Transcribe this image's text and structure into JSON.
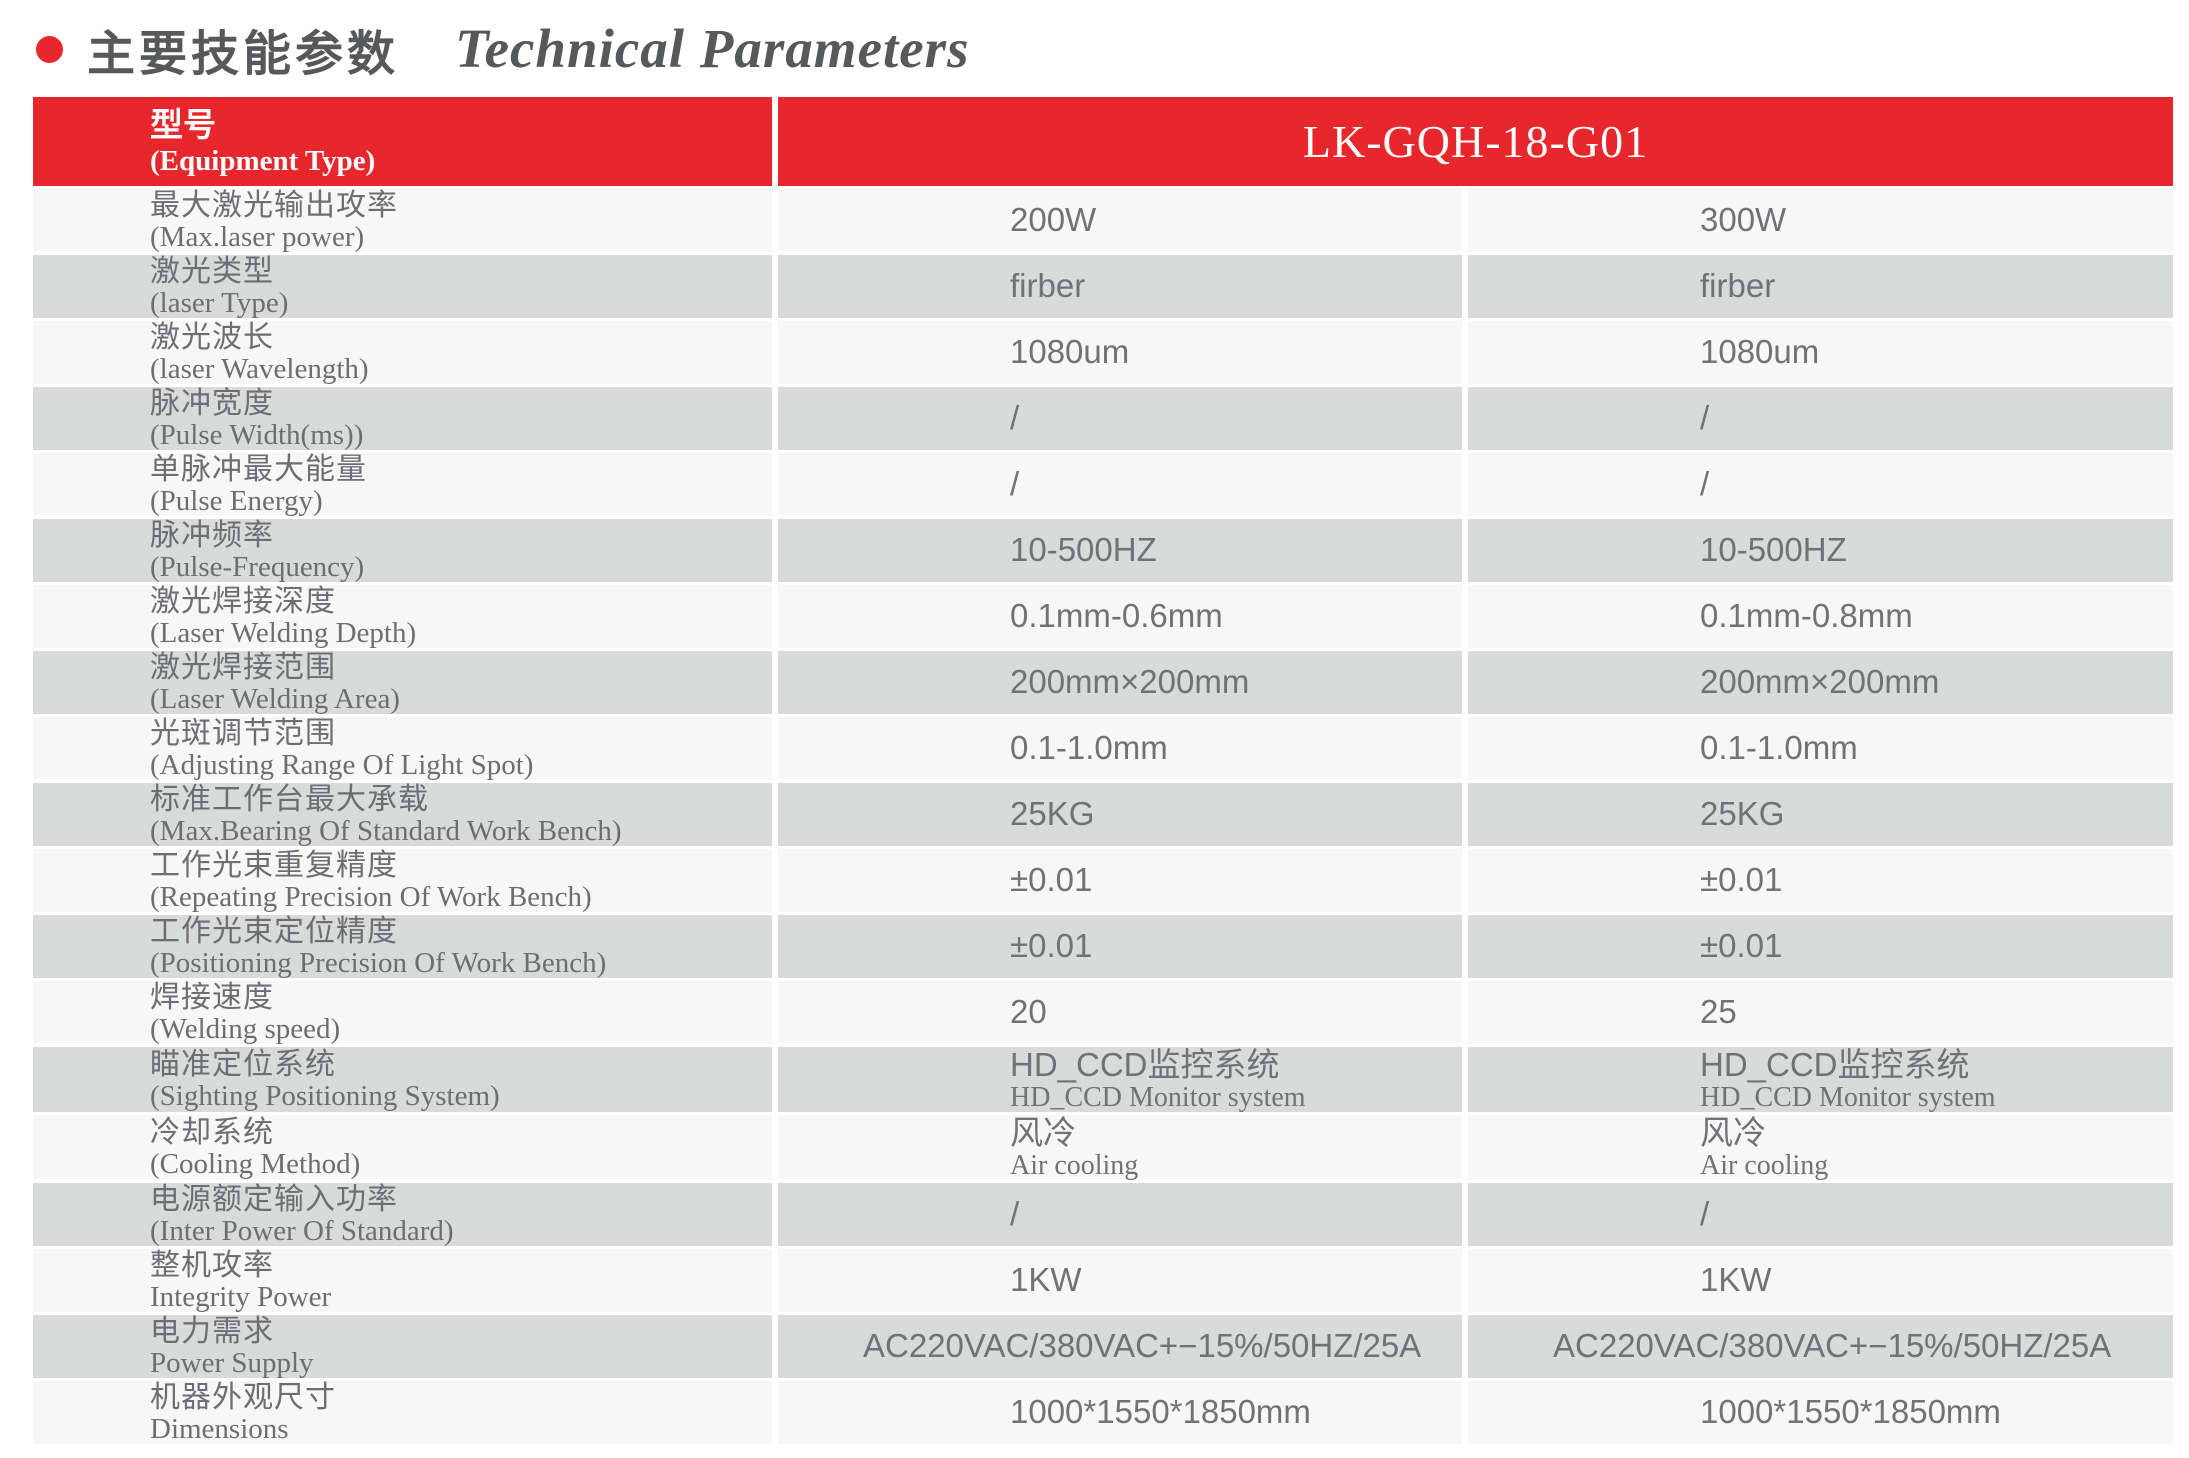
{
  "title": {
    "zh": "主要技能参数",
    "en": "Technical Parameters"
  },
  "colors": {
    "accent_red": "#e8272c",
    "row_light": "#f7f7f7",
    "row_gray": "#d9dada",
    "text_gray": "#6d6e71"
  },
  "table": {
    "header": {
      "label_zh": "型号",
      "label_en": "(Equipment Type)",
      "model": "LK-GQH-18-G01"
    },
    "rows": [
      {
        "label_zh": "最大激光输出攻率",
        "label_en": "(Max.laser power)",
        "col1": "200W",
        "col2": "300W"
      },
      {
        "label_zh": "激光类型",
        "label_en": "(laser Type)",
        "col1": "firber",
        "col2": "firber"
      },
      {
        "label_zh": "激光波长",
        "label_en": "(laser Wavelength)",
        "col1": "1080um",
        "col2": "1080um"
      },
      {
        "label_zh": "脉冲宽度",
        "label_en": "(Pulse Width(ms))",
        "col1": "/",
        "col2": "/"
      },
      {
        "label_zh": "单脉冲最大能量",
        "label_en": "(Pulse Energy)",
        "col1": "/",
        "col2": "/"
      },
      {
        "label_zh": "脉冲频率",
        "label_en": "(Pulse-Frequency)",
        "col1": "10-500HZ",
        "col2": "10-500HZ"
      },
      {
        "label_zh": "激光焊接深度",
        "label_en": "(Laser Welding Depth)",
        "col1": "0.1mm-0.6mm",
        "col2": "0.1mm-0.8mm"
      },
      {
        "label_zh": "激光焊接范围",
        "label_en": "(Laser Welding Area)",
        "col1": "200mm×200mm",
        "col2": "200mm×200mm"
      },
      {
        "label_zh": "光斑调节范围",
        "label_en": "(Adjusting Range Of Light Spot)",
        "col1": "0.1-1.0mm",
        "col2": "0.1-1.0mm"
      },
      {
        "label_zh": "标准工作台最大承载",
        "label_en": "(Max.Bearing Of Standard Work Bench)",
        "col1": "25KG",
        "col2": "25KG"
      },
      {
        "label_zh": "工作光束重复精度",
        "label_en": "(Repeating Precision Of Work Bench)",
        "col1": "±0.01",
        "col2": "±0.01"
      },
      {
        "label_zh": "工作光束定位精度",
        "label_en": "(Positioning Precision Of Work Bench)",
        "col1": "±0.01",
        "col2": "±0.01"
      },
      {
        "label_zh": "焊接速度",
        "label_en": "(Welding speed)",
        "col1": "20",
        "col2": "25"
      },
      {
        "label_zh": "瞄准定位系统",
        "label_en": "(Sighting Positioning System)",
        "col1": "HD_CCD监控系统",
        "col1_sub": "HD_CCD Monitor system",
        "col2": "HD_CCD监控系统",
        "col2_sub": "HD_CCD Monitor system"
      },
      {
        "label_zh": "冷却系统",
        "label_en": "(Cooling Method)",
        "col1": "风冷",
        "col1_sub": "Air cooling",
        "col2": "风冷",
        "col2_sub": "Air cooling"
      },
      {
        "label_zh": "电源额定输入功率",
        "label_en": "(Inter Power Of Standard)",
        "col1": "/",
        "col2": "/"
      },
      {
        "label_zh": "整机攻率",
        "label_en": "Integrity Power",
        "col1": "1KW",
        "col2": "1KW"
      },
      {
        "label_zh": "电力需求",
        "label_en": "Power Supply",
        "col1": "AC220VAC/380VAC+−15%/50HZ/25A",
        "col2": "AC220VAC/380VAC+−15%/50HZ/25A",
        "wide": true
      },
      {
        "label_zh": "机器外观尺寸",
        "label_en": "Dimensions",
        "col1": "1000*1550*1850mm",
        "col2": "1000*1550*1850mm"
      }
    ]
  }
}
